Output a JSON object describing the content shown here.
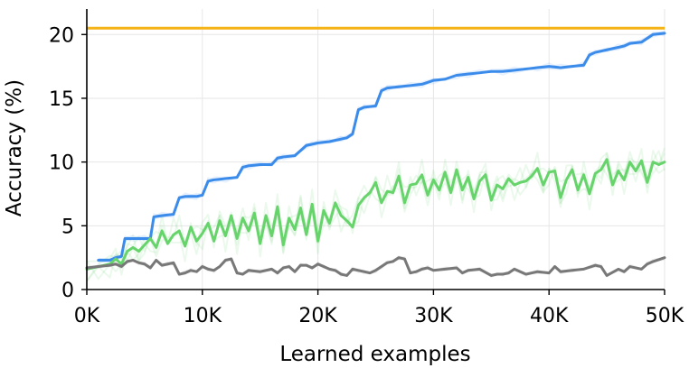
{
  "chart_data": {
    "type": "line",
    "xlabel": "Learned examples",
    "ylabel": "Accuracy (%)",
    "xlim": [
      0,
      50000
    ],
    "ylim": [
      0,
      22
    ],
    "xticks": [
      0,
      10000,
      20000,
      30000,
      40000,
      50000
    ],
    "xtick_labels": [
      "0K",
      "10K",
      "20K",
      "30K",
      "40K",
      "50K"
    ],
    "yticks": [
      0,
      5,
      10,
      15,
      20
    ],
    "ytick_labels": [
      "0",
      "5",
      "10",
      "15",
      "20"
    ],
    "grid": true,
    "reference_line": {
      "y": 20.5,
      "color": "#F5B316"
    },
    "series": [
      {
        "color": "#3B8BEB",
        "x": [
          1000,
          2000,
          2500,
          3000,
          3300,
          4000,
          5000,
          5500,
          5800,
          6500,
          7500,
          8000,
          8500,
          9500,
          10000,
          10500,
          11000,
          12000,
          13000,
          13500,
          14000,
          15000,
          16000,
          16500,
          17000,
          18000,
          19000,
          19500,
          20000,
          21000,
          22000,
          22500,
          23000,
          23500,
          24000,
          25000,
          25500,
          26000,
          27000,
          28000,
          29000,
          30000,
          31000,
          32000,
          33000,
          34000,
          35000,
          36000,
          37000,
          38000,
          39000,
          40000,
          41000,
          42000,
          43000,
          43500,
          44000,
          45000,
          46000,
          46500,
          47000,
          48000,
          49000,
          50000
        ],
        "y": [
          2.3,
          2.3,
          2.5,
          2.6,
          4.0,
          4.0,
          4.0,
          4.0,
          5.7,
          5.8,
          5.9,
          7.2,
          7.3,
          7.3,
          7.4,
          8.5,
          8.6,
          8.7,
          8.8,
          9.6,
          9.7,
          9.8,
          9.8,
          10.3,
          10.4,
          10.5,
          11.3,
          11.4,
          11.5,
          11.6,
          11.8,
          11.9,
          12.2,
          14.1,
          14.3,
          14.4,
          15.6,
          15.8,
          15.9,
          16.0,
          16.1,
          16.4,
          16.5,
          16.8,
          16.9,
          17.0,
          17.1,
          17.1,
          17.2,
          17.3,
          17.4,
          17.5,
          17.4,
          17.5,
          17.6,
          18.4,
          18.6,
          18.8,
          19.0,
          19.1,
          19.3,
          19.4,
          20.0,
          20.1
        ]
      },
      {
        "color": "#66D46B",
        "x": [
          0,
          1000,
          2000,
          2500,
          3000,
          3500,
          4000,
          4500,
          5000,
          5500,
          6000,
          6500,
          7000,
          7500,
          8000,
          8500,
          9000,
          9500,
          10000,
          10500,
          11000,
          11500,
          12000,
          12500,
          13000,
          13500,
          14000,
          14500,
          15000,
          15500,
          16000,
          16500,
          17000,
          17500,
          18000,
          18500,
          19000,
          19500,
          20000,
          20500,
          21000,
          21500,
          22000,
          22500,
          23000,
          23500,
          24000,
          24500,
          25000,
          25500,
          26000,
          26500,
          27000,
          27500,
          28000,
          28500,
          29000,
          29500,
          30000,
          30500,
          31000,
          31500,
          32000,
          32500,
          33000,
          33500,
          34000,
          34500,
          35000,
          35500,
          36000,
          36500,
          37000,
          37500,
          38000,
          38500,
          39000,
          39500,
          40000,
          40500,
          41000,
          41500,
          42000,
          42500,
          43000,
          43500,
          44000,
          44500,
          45000,
          45500,
          46000,
          46500,
          47000,
          47500,
          48000,
          48500,
          49000,
          49500,
          50000
        ],
        "y": [
          1.6,
          1.8,
          2.0,
          2.4,
          2.0,
          3.0,
          3.3,
          3.0,
          3.5,
          4.0,
          3.3,
          4.6,
          3.6,
          4.3,
          4.6,
          3.4,
          4.9,
          3.8,
          4.4,
          5.2,
          3.8,
          5.4,
          4.2,
          5.8,
          4.0,
          5.6,
          4.6,
          6.0,
          3.6,
          5.8,
          4.2,
          6.5,
          3.5,
          5.6,
          4.7,
          6.4,
          4.3,
          6.7,
          3.8,
          6.2,
          5.2,
          6.8,
          5.8,
          5.4,
          4.9,
          6.6,
          7.2,
          7.6,
          8.4,
          6.8,
          7.7,
          7.6,
          8.9,
          6.8,
          8.2,
          8.3,
          9.0,
          7.4,
          8.6,
          7.8,
          9.2,
          7.6,
          9.4,
          7.8,
          8.8,
          7.1,
          8.5,
          9.0,
          7.0,
          8.2,
          7.9,
          8.7,
          8.2,
          8.4,
          8.5,
          8.9,
          9.5,
          8.2,
          9.2,
          9.3,
          7.2,
          8.6,
          9.4,
          7.8,
          9.0,
          7.5,
          9.1,
          9.4,
          10.2,
          8.2,
          9.3,
          8.6,
          10.0,
          9.3,
          10.1,
          8.4,
          10.0,
          9.8,
          10.0
        ]
      },
      {
        "color": "#787878",
        "x": [
          0,
          1000,
          2000,
          2500,
          3000,
          3500,
          4000,
          4500,
          5000,
          5500,
          6000,
          6500,
          7000,
          7500,
          8000,
          8500,
          9000,
          9500,
          10000,
          10500,
          11000,
          11500,
          12000,
          12500,
          13000,
          13500,
          14000,
          15000,
          16000,
          16500,
          17000,
          17500,
          18000,
          18500,
          19000,
          19500,
          20000,
          20500,
          21000,
          21500,
          22000,
          22500,
          23000,
          23500,
          24000,
          24500,
          25000,
          25500,
          26000,
          26500,
          27000,
          27500,
          28000,
          28500,
          29000,
          29500,
          30000,
          31000,
          32000,
          32500,
          33000,
          34000,
          35000,
          35500,
          36000,
          36500,
          37000,
          38000,
          39000,
          40000,
          40500,
          41000,
          42000,
          43000,
          44000,
          44500,
          45000,
          46000,
          46500,
          47000,
          48000,
          48500,
          49000,
          50000
        ],
        "y": [
          1.7,
          1.8,
          1.9,
          2.0,
          1.8,
          2.2,
          2.3,
          2.1,
          2.0,
          1.7,
          2.3,
          1.9,
          2.0,
          2.1,
          1.2,
          1.3,
          1.5,
          1.4,
          1.8,
          1.6,
          1.5,
          1.8,
          2.3,
          2.4,
          1.3,
          1.2,
          1.5,
          1.4,
          1.6,
          1.3,
          1.7,
          1.8,
          1.4,
          1.9,
          1.9,
          1.7,
          2.0,
          1.8,
          1.6,
          1.5,
          1.2,
          1.1,
          1.6,
          1.5,
          1.4,
          1.3,
          1.5,
          1.8,
          2.1,
          2.2,
          2.5,
          2.4,
          1.3,
          1.4,
          1.6,
          1.7,
          1.5,
          1.6,
          1.7,
          1.3,
          1.5,
          1.6,
          1.1,
          1.2,
          1.2,
          1.3,
          1.6,
          1.2,
          1.4,
          1.3,
          1.8,
          1.4,
          1.5,
          1.6,
          1.9,
          1.8,
          1.1,
          1.6,
          1.4,
          1.8,
          1.6,
          2.0,
          2.2,
          2.5
        ]
      }
    ]
  }
}
